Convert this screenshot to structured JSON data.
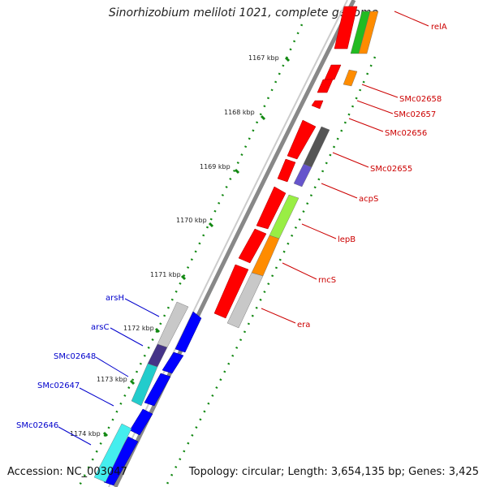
{
  "title": "Sinorhizobium meliloti 1021, complete genome",
  "accession": "Accession: NC_003047",
  "summary": "Topology: circular; Length: 3,654,135 bp; Genes: 3,425",
  "kbp_labels": [
    "1167 kbp",
    "1168 kbp",
    "1169 kbp",
    "1170 kbp",
    "1171 kbp",
    "1172 kbp",
    "1173 kbp",
    "1174 kbp"
  ],
  "right_gene_labels": [
    "relA",
    "SMc02658",
    "SMc02657",
    "SMc02656",
    "SMc02655",
    "acpS",
    "lepB",
    "rncS",
    "era"
  ],
  "left_gene_labels": [
    "arsH",
    "arsC",
    "SMc02648",
    "SMc02647",
    "SMc02646"
  ],
  "colors": {
    "reverse_strand": "#ff0000",
    "forward_strand": "#0000ff",
    "label_right": "#cc0000",
    "label_left": "#0000cc",
    "backbone": "#888888",
    "tick": "#118811"
  }
}
